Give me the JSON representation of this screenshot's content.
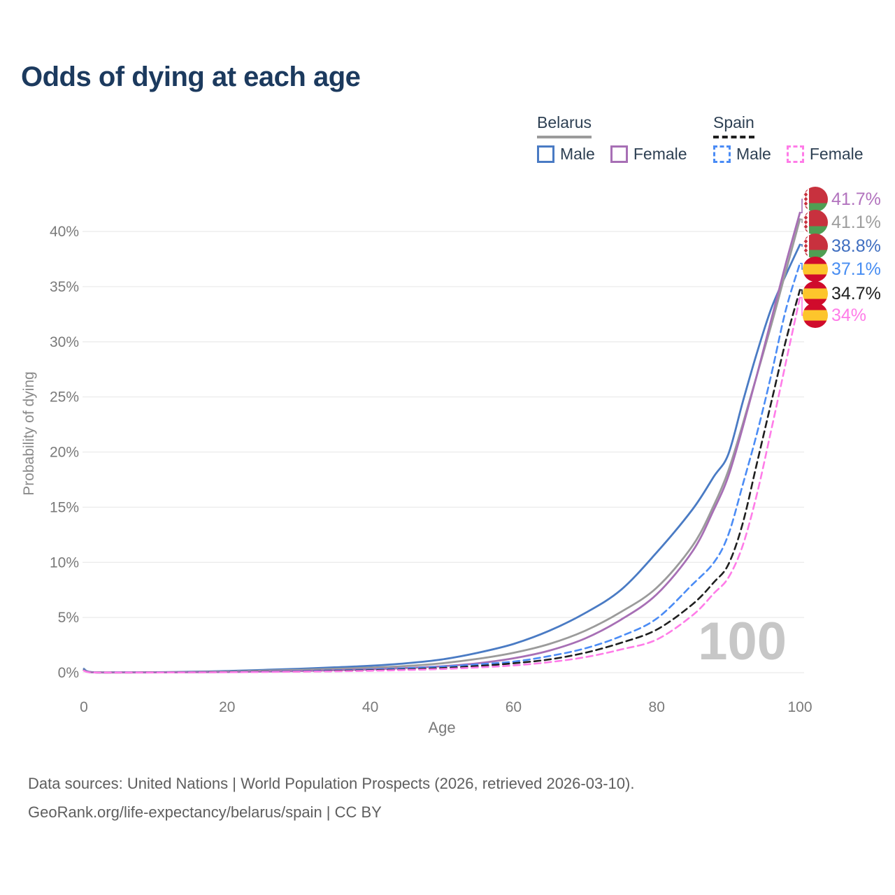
{
  "title": "Odds of dying at each age",
  "legend": {
    "belarus": {
      "label": "Belarus",
      "male": "Male",
      "female": "Female",
      "line_style": "solid",
      "underline_color": "#9b9b9b"
    },
    "spain": {
      "label": "Spain",
      "male": "Male",
      "female": "Female",
      "line_style": "dashed",
      "underline_color": "#1f1f1f"
    }
  },
  "chart_data": {
    "type": "line",
    "title": "Odds of dying at each age",
    "xlabel": "Age",
    "ylabel": "Probability of dying",
    "xlim": [
      0,
      100
    ],
    "ylim_percent": [
      0,
      43.5
    ],
    "x_ticks": [
      0,
      20,
      40,
      60,
      80,
      100
    ],
    "y_ticks_percent": [
      0,
      5,
      10,
      15,
      20,
      25,
      30,
      35,
      40
    ],
    "grid": "horizontal",
    "legend_position": "top-right",
    "watermark": "100",
    "ages": [
      0,
      1,
      5,
      10,
      15,
      20,
      25,
      30,
      35,
      40,
      45,
      50,
      55,
      60,
      65,
      70,
      75,
      80,
      85,
      88,
      90,
      92,
      94,
      96,
      98,
      100
    ],
    "series": [
      {
        "id": "belarus-female",
        "name": "Belarus Female",
        "country": "Belarus",
        "sex": "Female",
        "color": "#a76fb5",
        "label_color": "#b273be",
        "dash": "solid",
        "flag": "belarus",
        "end_label": "41.7%",
        "end_value": 41.7,
        "values": [
          0.22,
          0.035,
          0.02,
          0.025,
          0.04,
          0.06,
          0.1,
          0.15,
          0.22,
          0.3,
          0.42,
          0.58,
          0.85,
          1.3,
          2.0,
          3.1,
          4.8,
          7.1,
          11.0,
          14.8,
          17.8,
          22.2,
          27.0,
          32.0,
          37.0,
          41.7
        ]
      },
      {
        "id": "belarus-total",
        "name": "Belarus Both sexes",
        "country": "Belarus",
        "sex": "Both",
        "color": "#9b9b9b",
        "label_color": "#9e9e9e",
        "dash": "solid",
        "flag": "belarus",
        "end_label": "41.1%",
        "end_value": 41.1,
        "values": [
          0.28,
          0.04,
          0.025,
          0.03,
          0.06,
          0.1,
          0.17,
          0.25,
          0.34,
          0.45,
          0.6,
          0.85,
          1.25,
          1.8,
          2.6,
          3.8,
          5.5,
          7.7,
          11.5,
          15.2,
          18.3,
          22.5,
          27.0,
          31.5,
          36.3,
          41.1
        ]
      },
      {
        "id": "belarus-male",
        "name": "Belarus Male",
        "country": "Belarus",
        "sex": "Male",
        "color": "#4a7bc4",
        "label_color": "#3f6ec0",
        "dash": "solid",
        "flag": "belarus",
        "end_label": "38.8%",
        "end_value": 38.8,
        "values": [
          0.35,
          0.05,
          0.03,
          0.04,
          0.08,
          0.15,
          0.25,
          0.35,
          0.48,
          0.62,
          0.85,
          1.2,
          1.8,
          2.6,
          3.8,
          5.4,
          7.5,
          10.9,
          14.8,
          17.8,
          19.8,
          24.5,
          29.0,
          33.0,
          36.0,
          38.8
        ]
      },
      {
        "id": "spain-male",
        "name": "Spain Male",
        "country": "Spain",
        "sex": "Male",
        "color": "#4b8cf5",
        "label_color": "#478df2",
        "dash": "dashed",
        "flag": "spain",
        "end_label": "37.1%",
        "end_value": 37.1,
        "values": [
          0.25,
          0.03,
          0.02,
          0.025,
          0.04,
          0.06,
          0.1,
          0.14,
          0.2,
          0.28,
          0.4,
          0.55,
          0.75,
          1.0,
          1.5,
          2.2,
          3.3,
          4.9,
          8.0,
          10.0,
          12.5,
          17.0,
          21.7,
          27.0,
          32.8,
          37.1
        ]
      },
      {
        "id": "spain-total",
        "name": "Spain Both sexes",
        "country": "Spain",
        "sex": "Both",
        "color": "#1f1f1f",
        "label_color": "#1f1f1f",
        "dash": "dashed",
        "flag": "spain",
        "end_label": "34.7%",
        "end_value": 34.7,
        "values": [
          0.2,
          0.025,
          0.015,
          0.02,
          0.03,
          0.05,
          0.08,
          0.11,
          0.16,
          0.22,
          0.3,
          0.42,
          0.6,
          0.85,
          1.2,
          1.8,
          2.7,
          3.9,
          6.2,
          8.2,
          9.8,
          13.5,
          19.0,
          24.5,
          30.0,
          34.7
        ]
      },
      {
        "id": "spain-female",
        "name": "Spain Female",
        "country": "Spain",
        "sex": "Female",
        "color": "#ff7ce8",
        "label_color": "#ff7ce8",
        "dash": "dashed",
        "flag": "spain",
        "end_label": "34%",
        "end_value": 34,
        "values": [
          0.18,
          0.02,
          0.012,
          0.015,
          0.025,
          0.04,
          0.06,
          0.09,
          0.12,
          0.17,
          0.24,
          0.33,
          0.47,
          0.65,
          0.95,
          1.4,
          2.1,
          3.0,
          5.2,
          7.2,
          8.6,
          11.5,
          16.2,
          22.0,
          28.0,
          34.0
        ]
      }
    ],
    "flag_colors": {
      "belarus": {
        "red": "#c8313e",
        "green": "#4f9e53",
        "white": "#ffffff"
      },
      "spain": {
        "red": "#d00b2c",
        "yellow": "#fdc52c"
      }
    }
  },
  "footer": {
    "line1": "Data sources: United Nations | World Population Prospects (2026, retrieved 2026-03-10).",
    "line2": "GeoRank.org/life-expectancy/belarus/spain | CC BY"
  }
}
